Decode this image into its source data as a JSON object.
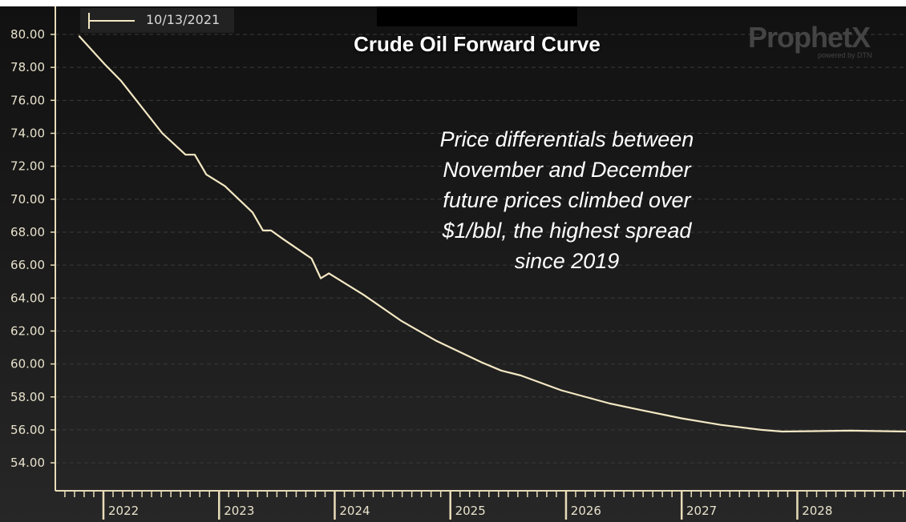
{
  "chart_data": {
    "type": "line",
    "title": "Crude Oil Forward Curve",
    "xlabel": "",
    "ylabel": "",
    "legend": [
      {
        "label": "10/13/2021",
        "color": "#f4e8c4",
        "placement": "top-left"
      }
    ],
    "annotation": "Price differentials between November and December future prices climbed over $1/bbl, the highest spread since 2019",
    "annotation_lines": [
      "Price differentials between",
      "November and December",
      "future prices climbed over",
      "$1/bbl, the highest spread",
      "since 2019"
    ],
    "ylim": [
      53,
      81
    ],
    "xlim": [
      2021.65,
      2029.0
    ],
    "grid": true,
    "y_ticks": [
      "54.00",
      "56.00",
      "58.00",
      "60.00",
      "62.00",
      "64.00",
      "66.00",
      "68.00",
      "70.00",
      "72.00",
      "74.00",
      "76.00",
      "78.00",
      "80.00"
    ],
    "x_ticks": [
      "2022",
      "2023",
      "2024",
      "2025",
      "2026",
      "2027",
      "2028"
    ],
    "series": [
      {
        "name": "10/13/2021",
        "color": "#f4e8c4",
        "x": [
          2021.79,
          2022.01,
          2022.15,
          2022.51,
          2022.71,
          2022.79,
          2022.89,
          2023.05,
          2023.29,
          2023.38,
          2023.45,
          2023.55,
          2023.8,
          2023.88,
          2023.95,
          2024.25,
          2024.58,
          2024.88,
          2025.27,
          2025.44,
          2025.61,
          2025.96,
          2026.38,
          2026.65,
          2027.0,
          2027.34,
          2027.69,
          2027.87,
          2028.46,
          2028.94
        ],
        "values": [
          79.9,
          78.2,
          77.2,
          74.0,
          72.7,
          72.7,
          71.5,
          70.8,
          69.2,
          68.1,
          68.1,
          67.6,
          66.4,
          65.2,
          65.5,
          64.2,
          62.6,
          61.4,
          60.1,
          59.6,
          59.3,
          58.4,
          57.6,
          57.2,
          56.7,
          56.3,
          56.0,
          55.9,
          55.95,
          55.9
        ]
      }
    ]
  },
  "logo": {
    "name": "ProphetX",
    "sub": "powered by DTN"
  }
}
